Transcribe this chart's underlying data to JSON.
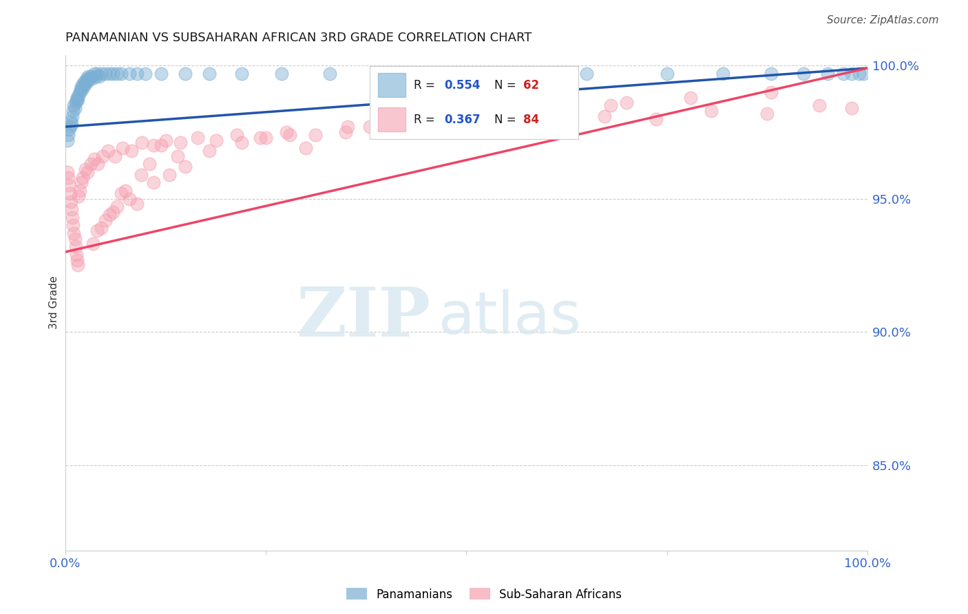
{
  "title": "PANAMANIAN VS SUBSAHARAN AFRICAN 3RD GRADE CORRELATION CHART",
  "source_text": "Source: ZipAtlas.com",
  "ylabel": "3rd Grade",
  "xlim": [
    0.0,
    1.0
  ],
  "ylim": [
    0.818,
    1.004
  ],
  "right_yticks": [
    0.85,
    0.9,
    0.95,
    1.0
  ],
  "right_yticklabels": [
    "85.0%",
    "90.0%",
    "95.0%",
    "100.0%"
  ],
  "blue_color": "#7bafd4",
  "pink_color": "#f4a0b0",
  "blue_line_color": "#2255aa",
  "pink_line_color": "#ee4466",
  "panamanian_legend": "Panamanians",
  "subsaharan_legend": "Sub-Saharan Africans",
  "watermark_zip": "ZIP",
  "watermark_atlas": "atlas",
  "blue_x": [
    0.003,
    0.004,
    0.005,
    0.006,
    0.007,
    0.008,
    0.009,
    0.01,
    0.011,
    0.012,
    0.013,
    0.014,
    0.015,
    0.016,
    0.017,
    0.018,
    0.019,
    0.02,
    0.021,
    0.022,
    0.023,
    0.024,
    0.025,
    0.026,
    0.027,
    0.028,
    0.029,
    0.03,
    0.032,
    0.034,
    0.036,
    0.038,
    0.04,
    0.042,
    0.045,
    0.05,
    0.055,
    0.06,
    0.065,
    0.07,
    0.08,
    0.09,
    0.1,
    0.12,
    0.15,
    0.18,
    0.22,
    0.27,
    0.33,
    0.4,
    0.48,
    0.56,
    0.65,
    0.75,
    0.82,
    0.88,
    0.92,
    0.95,
    0.97,
    0.98,
    0.99,
    0.995
  ],
  "blue_y": [
    0.972,
    0.974,
    0.976,
    0.977,
    0.979,
    0.978,
    0.981,
    0.983,
    0.985,
    0.984,
    0.986,
    0.987,
    0.988,
    0.987,
    0.989,
    0.99,
    0.991,
    0.992,
    0.991,
    0.993,
    0.992,
    0.994,
    0.993,
    0.994,
    0.995,
    0.994,
    0.996,
    0.995,
    0.996,
    0.995,
    0.997,
    0.996,
    0.997,
    0.996,
    0.997,
    0.997,
    0.997,
    0.997,
    0.997,
    0.997,
    0.997,
    0.997,
    0.997,
    0.997,
    0.997,
    0.997,
    0.997,
    0.997,
    0.997,
    0.997,
    0.997,
    0.997,
    0.997,
    0.997,
    0.997,
    0.997,
    0.997,
    0.997,
    0.997,
    0.997,
    0.997,
    0.997
  ],
  "pink_x": [
    0.003,
    0.004,
    0.005,
    0.006,
    0.007,
    0.008,
    0.009,
    0.01,
    0.011,
    0.012,
    0.013,
    0.014,
    0.015,
    0.016,
    0.017,
    0.018,
    0.02,
    0.022,
    0.025,
    0.028,
    0.032,
    0.036,
    0.041,
    0.047,
    0.054,
    0.062,
    0.072,
    0.083,
    0.096,
    0.11,
    0.126,
    0.144,
    0.165,
    0.188,
    0.214,
    0.243,
    0.276,
    0.312,
    0.352,
    0.396,
    0.444,
    0.496,
    0.551,
    0.61,
    0.672,
    0.737,
    0.805,
    0.875,
    0.94,
    0.98,
    0.12,
    0.18,
    0.07,
    0.09,
    0.11,
    0.15,
    0.05,
    0.06,
    0.08,
    0.13,
    0.04,
    0.055,
    0.035,
    0.045,
    0.065,
    0.075,
    0.095,
    0.105,
    0.14,
    0.22,
    0.25,
    0.3,
    0.35,
    0.42,
    0.5,
    0.6,
    0.7,
    0.28,
    0.38,
    0.48,
    0.58,
    0.68,
    0.78,
    0.88
  ],
  "pink_y": [
    0.96,
    0.958,
    0.955,
    0.952,
    0.949,
    0.946,
    0.943,
    0.94,
    0.937,
    0.935,
    0.932,
    0.929,
    0.927,
    0.925,
    0.951,
    0.953,
    0.956,
    0.958,
    0.961,
    0.96,
    0.963,
    0.965,
    0.963,
    0.966,
    0.968,
    0.966,
    0.969,
    0.968,
    0.971,
    0.97,
    0.972,
    0.971,
    0.973,
    0.972,
    0.974,
    0.973,
    0.975,
    0.974,
    0.977,
    0.976,
    0.978,
    0.977,
    0.98,
    0.979,
    0.981,
    0.98,
    0.983,
    0.982,
    0.985,
    0.984,
    0.97,
    0.968,
    0.952,
    0.948,
    0.956,
    0.962,
    0.942,
    0.945,
    0.95,
    0.959,
    0.938,
    0.944,
    0.933,
    0.939,
    0.947,
    0.953,
    0.959,
    0.963,
    0.966,
    0.971,
    0.973,
    0.969,
    0.975,
    0.978,
    0.98,
    0.983,
    0.986,
    0.974,
    0.977,
    0.979,
    0.982,
    0.985,
    0.988,
    0.99
  ]
}
